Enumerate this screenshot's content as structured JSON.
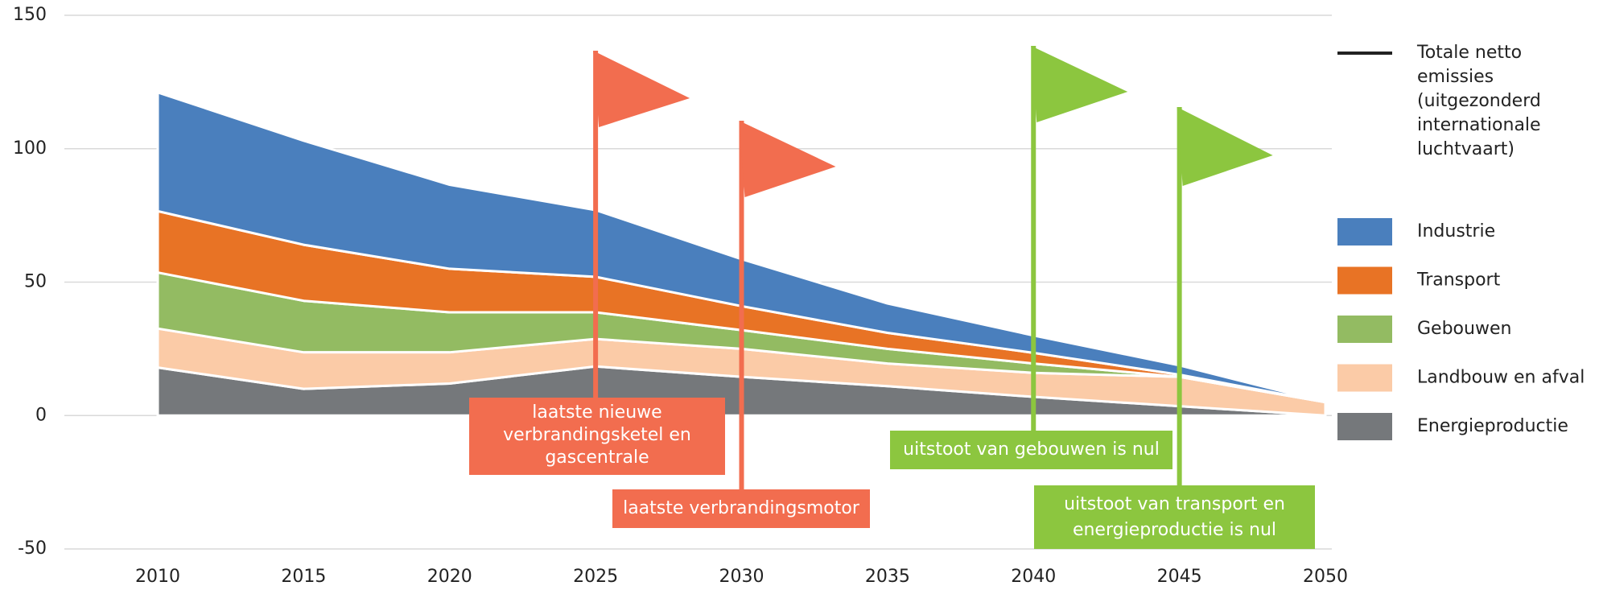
{
  "chart_data": {
    "type": "stacked_area",
    "x": [
      2010,
      2015,
      2020,
      2025,
      2030,
      2035,
      2040,
      2045,
      2050
    ],
    "xlim": [
      2010,
      2050
    ],
    "xticks": [
      2010,
      2015,
      2020,
      2025,
      2030,
      2035,
      2040,
      2045,
      2050
    ],
    "ylim": [
      -50,
      150
    ],
    "yticks": [
      -50,
      0,
      50,
      100,
      150
    ],
    "grid": true,
    "legend": "right",
    "series": [
      {
        "name": "Energieproductie",
        "color": "#75787b",
        "values": [
          18,
          10,
          12,
          18.4,
          14.5,
          11,
          7,
          3.5,
          0
        ]
      },
      {
        "name": "Landbouw en afval",
        "color": "#fbcba7",
        "values": [
          14.6,
          13.7,
          11.7,
          10.3,
          10.5,
          8.5,
          9,
          11,
          5
        ]
      },
      {
        "name": "Gebouwen",
        "color": "#93bb62",
        "values": [
          21,
          19.3,
          15,
          10,
          7,
          5.5,
          3.5,
          0,
          0
        ]
      },
      {
        "name": "Transport",
        "color": "#e87325",
        "values": [
          23,
          21,
          16.3,
          13.3,
          9,
          6,
          4,
          0.8,
          0
        ]
      },
      {
        "name": "Industrie",
        "color": "#4a7fbd",
        "values": [
          44.5,
          39,
          31.5,
          25,
          17.6,
          11,
          6.5,
          3.5,
          0
        ]
      }
    ],
    "line_legend": {
      "lines": [
        "Totale netto",
        "emissies",
        "(uitgezonderd",
        "internationale",
        "luchtvaart)"
      ],
      "color": "#222222"
    },
    "annotations": [
      {
        "x": 2025,
        "color": "#f26d4f",
        "lines": [
          "laatste nieuwe",
          "verbrandingsketel en",
          "gascentrale"
        ]
      },
      {
        "x": 2030,
        "color": "#f26d4f",
        "lines": [
          "laatste verbrandingsmotor"
        ]
      },
      {
        "x": 2040,
        "color": "#8cc63f",
        "lines": [
          "uitstoot van gebouwen is nul"
        ]
      },
      {
        "x": 2045,
        "color": "#8cc63f",
        "lines": [
          "uitstoot van transport en",
          "energieproductie is nul"
        ]
      }
    ]
  }
}
